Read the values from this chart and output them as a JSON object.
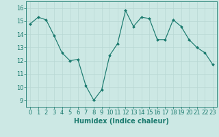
{
  "x": [
    0,
    1,
    2,
    3,
    4,
    5,
    6,
    7,
    8,
    9,
    10,
    11,
    12,
    13,
    14,
    15,
    16,
    17,
    18,
    19,
    20,
    21,
    22,
    23
  ],
  "y": [
    14.8,
    15.3,
    15.1,
    13.9,
    12.6,
    12.0,
    12.1,
    10.1,
    9.0,
    9.8,
    12.4,
    13.3,
    15.8,
    14.6,
    15.3,
    15.2,
    13.6,
    13.6,
    15.1,
    14.6,
    13.6,
    13.0,
    12.6,
    11.7
  ],
  "xlabel": "Humidex (Indice chaleur)",
  "xlim": [
    -0.5,
    23.5
  ],
  "ylim": [
    8.5,
    16.5
  ],
  "yticks": [
    9,
    10,
    11,
    12,
    13,
    14,
    15,
    16
  ],
  "xticks": [
    0,
    1,
    2,
    3,
    4,
    5,
    6,
    7,
    8,
    9,
    10,
    11,
    12,
    13,
    14,
    15,
    16,
    17,
    18,
    19,
    20,
    21,
    22,
    23
  ],
  "line_color": "#1a7a6e",
  "marker": "D",
  "marker_size": 2.0,
  "bg_color": "#cce8e4",
  "grid_color": "#b8d8d4",
  "axis_fontsize": 6.5,
  "tick_fontsize": 6.0,
  "xlabel_fontsize": 7.0
}
